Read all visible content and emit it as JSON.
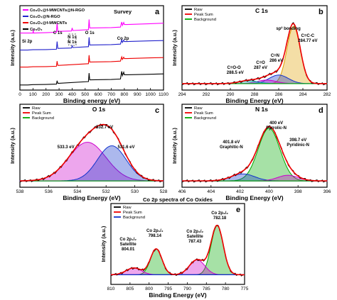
{
  "chart_data": [
    {
      "panel": "a",
      "type": "line",
      "title": "Survey",
      "xlabel": "Binding energy (eV)",
      "ylabel": "Intensity (a.u.)",
      "xlim": [
        0,
        1100
      ],
      "xticks": [
        "0",
        "100",
        "200",
        "300",
        "400",
        "500",
        "600",
        "700",
        "800",
        "900",
        "1000",
        "1100"
      ],
      "legend_position": "top-left",
      "series": [
        {
          "name": "Co₃O₄@f-MWCNTs@N-RGO",
          "color": "#ff00ff",
          "offset": 3.0,
          "x": [
            0,
            60,
            100,
            102,
            104,
            110,
            200,
            280,
            285,
            290,
            300,
            395,
            400,
            405,
            410,
            525,
            530,
            535,
            540,
            700,
            770,
            780,
            785,
            795,
            800,
            820,
            1000,
            1100
          ],
          "y": [
            0.1,
            0.1,
            0.1,
            0.35,
            0.1,
            0.1,
            0.12,
            0.15,
            0.7,
            0.2,
            0.2,
            0.22,
            0.4,
            0.25,
            0.25,
            0.3,
            0.9,
            0.4,
            0.4,
            0.42,
            0.45,
            0.75,
            0.55,
            0.72,
            0.6,
            0.6,
            0.65,
            0.68
          ]
        },
        {
          "name": "Co₃O₄@N-RGO",
          "color": "#2222cc",
          "offset": 2.0,
          "x": [
            0,
            60,
            100,
            110,
            200,
            280,
            285,
            290,
            300,
            395,
            400,
            405,
            410,
            525,
            530,
            535,
            540,
            700,
            770,
            780,
            785,
            795,
            800,
            820,
            1000,
            1100
          ],
          "y": [
            0.1,
            0.1,
            0.12,
            0.12,
            0.13,
            0.15,
            0.6,
            0.2,
            0.2,
            0.22,
            0.35,
            0.25,
            0.25,
            0.3,
            0.85,
            0.4,
            0.4,
            0.42,
            0.45,
            0.7,
            0.55,
            0.68,
            0.6,
            0.6,
            0.64,
            0.66
          ]
        },
        {
          "name": "Co₃O₄@f-MWCNTs",
          "color": "#ee0000",
          "offset": 1.0,
          "x": [
            0,
            60,
            100,
            110,
            200,
            280,
            285,
            290,
            300,
            525,
            530,
            535,
            540,
            700,
            770,
            780,
            785,
            795,
            800,
            820,
            1000,
            1100
          ],
          "y": [
            0.1,
            0.1,
            0.12,
            0.12,
            0.13,
            0.15,
            0.45,
            0.2,
            0.2,
            0.3,
            0.8,
            0.4,
            0.4,
            0.42,
            0.45,
            0.7,
            0.55,
            0.68,
            0.6,
            0.6,
            0.64,
            0.66
          ]
        },
        {
          "name": "Co₃O₄",
          "color": "#000000",
          "offset": 0.0,
          "x": [
            0,
            60,
            100,
            110,
            200,
            280,
            285,
            290,
            300,
            525,
            530,
            535,
            540,
            700,
            770,
            780,
            785,
            795,
            800,
            820,
            1000,
            1100
          ],
          "y": [
            0.05,
            0.05,
            0.07,
            0.07,
            0.08,
            0.1,
            0.3,
            0.15,
            0.15,
            0.25,
            0.75,
            0.35,
            0.35,
            0.37,
            0.4,
            0.85,
            0.6,
            0.8,
            0.65,
            0.65,
            0.68,
            0.7
          ]
        }
      ],
      "annotations": [
        "C 1s",
        "O 1s",
        "Co 2p",
        "Si 2p",
        "N 1s",
        "N 1s"
      ]
    },
    {
      "panel": "b",
      "type": "line",
      "title": "C 1s",
      "xlabel": "Binding Energy (eV)",
      "ylabel": "Intensity (a.u.)",
      "xlim": [
        294,
        282
      ],
      "xticks": [
        "294",
        "292",
        "290",
        "288",
        "286",
        "284",
        "282"
      ],
      "legend_position": "top-left",
      "legend": [
        {
          "name": "Raw",
          "color": "#000000"
        },
        {
          "name": "Peak Sum",
          "color": "#ee0000"
        },
        {
          "name": "Background",
          "color": "#00aa00"
        }
      ],
      "components": [
        {
          "center": 284.77,
          "height": 0.8,
          "width": 0.55,
          "color": "#e0a000"
        },
        {
          "center": 286.0,
          "height": 0.12,
          "width": 0.8,
          "color": "#1133cc"
        },
        {
          "center": 287.0,
          "height": 0.05,
          "width": 0.8,
          "color": "#cc00cc"
        },
        {
          "center": 288.5,
          "height": 0.04,
          "width": 0.8,
          "color": "#00aaaa"
        }
      ],
      "background": 0.05,
      "annotations": [
        "sp² bonding",
        "C=C-C",
        "284.77 eV",
        "C=N",
        "286 eV",
        "C=O",
        "287 eV",
        "C=O-O",
        "288.5 eV"
      ]
    },
    {
      "panel": "c",
      "type": "line",
      "title": "O 1s",
      "xlabel": "Binding Energy (eV)",
      "ylabel": "Intensity (a.u.)",
      "xlim": [
        538,
        528
      ],
      "xticks": [
        "538",
        "536",
        "534",
        "532",
        "530",
        "528"
      ],
      "legend_position": "top-left",
      "legend": [
        {
          "name": "Raw",
          "color": "#000000"
        },
        {
          "name": "Peak Sum",
          "color": "#ee0000"
        },
        {
          "name": "Background",
          "color": "#00aa00"
        }
      ],
      "components": [
        {
          "center": 533.3,
          "height": 0.55,
          "width": 1.3,
          "color": "#cc00cc"
        },
        {
          "center": 532.7,
          "height": 0.0,
          "width": 1.2,
          "color": "#cc00cc"
        },
        {
          "center": 531.6,
          "height": 0.5,
          "width": 1.0,
          "color": "#1133cc"
        }
      ],
      "background": 0.05,
      "annotations": [
        "532.7 eV",
        "533.3 eV",
        "531.6 eV"
      ]
    },
    {
      "panel": "d",
      "type": "line",
      "title": "N 1s",
      "xlabel": "Binding Energy (eV)",
      "ylabel": "Intensity (a.u.)",
      "xlim": [
        406,
        396
      ],
      "xticks": [
        "406",
        "404",
        "402",
        "400",
        "398",
        "396"
      ],
      "legend_position": "top-left",
      "legend": [
        {
          "name": "Raw",
          "color": "#000000"
        },
        {
          "name": "Peak Sum",
          "color": "#ee0000"
        },
        {
          "name": "Background",
          "color": "#00aa00"
        }
      ],
      "components": [
        {
          "center": 400.0,
          "height": 0.75,
          "width": 0.75,
          "color": "#00aa00"
        },
        {
          "center": 401.8,
          "height": 0.1,
          "width": 0.8,
          "color": "#1133cc"
        },
        {
          "center": 398.7,
          "height": 0.08,
          "width": 0.7,
          "color": "#cc00cc"
        }
      ],
      "background": 0.05,
      "annotations": [
        "400 eV",
        "Pyrrolic-N",
        "401.8 eV",
        "Graphitic-N",
        "398.7 eV",
        "Pyridinic-N"
      ]
    },
    {
      "panel": "e",
      "type": "line",
      "title": "Co 2p spectra of Co Oxides",
      "xlabel": "Binding Energy (eV)",
      "ylabel": "Intensity (a.u.)",
      "xlim": [
        810,
        775
      ],
      "xticks": [
        "810",
        "805",
        "800",
        "795",
        "790",
        "785",
        "780",
        "775"
      ],
      "legend_position": "top-left",
      "legend": [
        {
          "name": "Raw",
          "color": "#000000"
        },
        {
          "name": "Peak Sum",
          "color": "#ee0000"
        },
        {
          "name": "Background",
          "color": "#1133cc"
        }
      ],
      "components": [
        {
          "center": 782.18,
          "height": 0.72,
          "width": 1.6,
          "color": "#00aa00"
        },
        {
          "center": 787.43,
          "height": 0.22,
          "width": 2.0,
          "color": "#cc00cc"
        },
        {
          "center": 798.14,
          "height": 0.38,
          "width": 1.5,
          "color": "#00aa00"
        },
        {
          "center": 804.01,
          "height": 0.1,
          "width": 2.0,
          "color": "#cc00cc"
        }
      ],
      "background": 0.1,
      "annotations": [
        "Co 2p₃/₂",
        "782.18",
        "Co 2p₃/₂",
        "Satellite",
        "787.43",
        "Co 2p₁/₂",
        "798.14",
        "Co 2p₁/₂",
        "Satellite",
        "804.01"
      ]
    }
  ]
}
